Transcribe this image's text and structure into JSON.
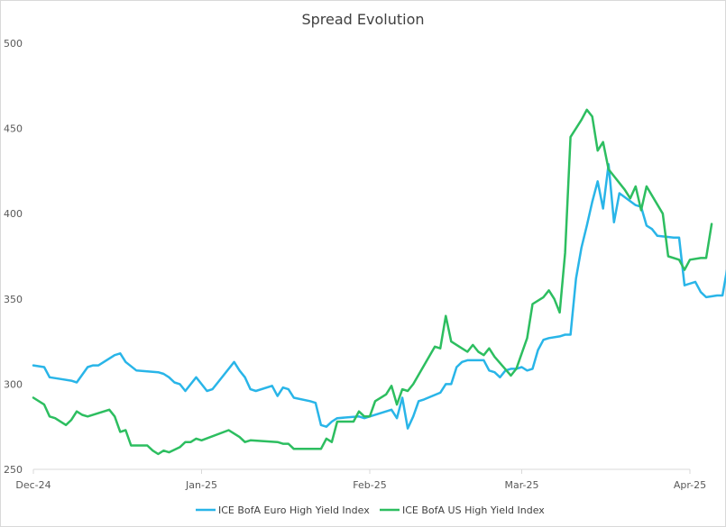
{
  "chart_data": {
    "type": "line",
    "title": "Spread Evolution",
    "xlabel": "",
    "ylabel": "",
    "ylim": [
      250,
      500
    ],
    "yticks": [
      250,
      300,
      350,
      400,
      450,
      500
    ],
    "xticks": [
      {
        "label": "Dec-24",
        "x": 0
      },
      {
        "label": "Jan-25",
        "x": 31
      },
      {
        "label": "Feb-25",
        "x": 62
      },
      {
        "label": "Mar-25",
        "x": 90
      },
      {
        "label": "Apr-25",
        "x": 121
      }
    ],
    "grid": false,
    "legend": "bottom",
    "series": [
      {
        "name": "ICE BofA Euro High Yield Index",
        "color": "#29b5e8",
        "points": [
          [
            0,
            311
          ],
          [
            2,
            310
          ],
          [
            3,
            304
          ],
          [
            5,
            303
          ],
          [
            7,
            302
          ],
          [
            8,
            301
          ],
          [
            10,
            310
          ],
          [
            11,
            311
          ],
          [
            12,
            311
          ],
          [
            15,
            317
          ],
          [
            16,
            318
          ],
          [
            17,
            313
          ],
          [
            19,
            308
          ],
          [
            23,
            307
          ],
          [
            24,
            306
          ],
          [
            25,
            304
          ],
          [
            26,
            301
          ],
          [
            27,
            300
          ],
          [
            28,
            296
          ],
          [
            29,
            300
          ],
          [
            30,
            304
          ],
          [
            31,
            300
          ],
          [
            32,
            296
          ],
          [
            33,
            297
          ],
          [
            34,
            301
          ],
          [
            37,
            313
          ],
          [
            38,
            308
          ],
          [
            39,
            304
          ],
          [
            40,
            297
          ],
          [
            41,
            296
          ],
          [
            44,
            299
          ],
          [
            45,
            293
          ],
          [
            46,
            298
          ],
          [
            47,
            297
          ],
          [
            48,
            292
          ],
          [
            51,
            290
          ],
          [
            52,
            289
          ],
          [
            53,
            276
          ],
          [
            54,
            275
          ],
          [
            55,
            278
          ],
          [
            56,
            280
          ],
          [
            60,
            281
          ],
          [
            61,
            280
          ],
          [
            62,
            281
          ],
          [
            66,
            285
          ],
          [
            67,
            280
          ],
          [
            68,
            292
          ],
          [
            69,
            274
          ],
          [
            70,
            281
          ],
          [
            71,
            290
          ],
          [
            72,
            291
          ],
          [
            75,
            295
          ],
          [
            76,
            300
          ],
          [
            77,
            300
          ],
          [
            78,
            310
          ],
          [
            79,
            313
          ],
          [
            80,
            314
          ],
          [
            82,
            314
          ],
          [
            83,
            314
          ],
          [
            84,
            308
          ],
          [
            85,
            307
          ],
          [
            86,
            304
          ],
          [
            87,
            308
          ],
          [
            88,
            309
          ],
          [
            89,
            309
          ],
          [
            90,
            310
          ],
          [
            91,
            308
          ],
          [
            92,
            309
          ],
          [
            93,
            320
          ],
          [
            94,
            326
          ],
          [
            95,
            327
          ],
          [
            97,
            328
          ],
          [
            98,
            329
          ],
          [
            99,
            329
          ],
          [
            100,
            362
          ],
          [
            101,
            380
          ],
          [
            102,
            393
          ],
          [
            103,
            407
          ],
          [
            104,
            419
          ],
          [
            105,
            403
          ],
          [
            106,
            429
          ],
          [
            107,
            395
          ],
          [
            108,
            412
          ],
          [
            111,
            405
          ],
          [
            112,
            404
          ],
          [
            113,
            393
          ],
          [
            114,
            391
          ],
          [
            115,
            387
          ],
          [
            118,
            386
          ],
          [
            119,
            386
          ],
          [
            120,
            358
          ],
          [
            122,
            360
          ],
          [
            123,
            354
          ],
          [
            124,
            351
          ],
          [
            126,
            352
          ],
          [
            127,
            352
          ],
          [
            128,
            370
          ]
        ]
      },
      {
        "name": "ICE BofA US High Yield Index",
        "color": "#2dbe60",
        "points": [
          [
            0,
            292
          ],
          [
            2,
            288
          ],
          [
            3,
            281
          ],
          [
            4,
            280
          ],
          [
            6,
            276
          ],
          [
            7,
            279
          ],
          [
            8,
            284
          ],
          [
            9,
            282
          ],
          [
            10,
            281
          ],
          [
            12,
            283
          ],
          [
            14,
            285
          ],
          [
            15,
            281
          ],
          [
            16,
            272
          ],
          [
            17,
            273
          ],
          [
            18,
            264
          ],
          [
            21,
            264
          ],
          [
            22,
            261
          ],
          [
            23,
            259
          ],
          [
            24,
            261
          ],
          [
            25,
            260
          ],
          [
            27,
            263
          ],
          [
            28,
            266
          ],
          [
            29,
            266
          ],
          [
            30,
            268
          ],
          [
            31,
            267
          ],
          [
            36,
            273
          ],
          [
            37,
            271
          ],
          [
            38,
            269
          ],
          [
            39,
            266
          ],
          [
            40,
            267
          ],
          [
            45,
            266
          ],
          [
            46,
            265
          ],
          [
            47,
            265
          ],
          [
            48,
            262
          ],
          [
            53,
            262
          ],
          [
            54,
            268
          ],
          [
            55,
            266
          ],
          [
            56,
            278
          ],
          [
            59,
            278
          ],
          [
            60,
            284
          ],
          [
            61,
            281
          ],
          [
            62,
            281
          ],
          [
            63,
            290
          ],
          [
            65,
            294
          ],
          [
            66,
            299
          ],
          [
            67,
            288
          ],
          [
            68,
            297
          ],
          [
            69,
            296
          ],
          [
            70,
            300
          ],
          [
            74,
            322
          ],
          [
            75,
            321
          ],
          [
            76,
            340
          ],
          [
            77,
            325
          ],
          [
            80,
            319
          ],
          [
            81,
            323
          ],
          [
            82,
            319
          ],
          [
            83,
            317
          ],
          [
            84,
            321
          ],
          [
            85,
            316
          ],
          [
            88,
            305
          ],
          [
            89,
            309
          ],
          [
            90,
            318
          ],
          [
            91,
            327
          ],
          [
            92,
            347
          ],
          [
            94,
            351
          ],
          [
            95,
            355
          ],
          [
            96,
            350
          ],
          [
            97,
            342
          ],
          [
            98,
            377
          ],
          [
            99,
            445
          ],
          [
            101,
            455
          ],
          [
            102,
            461
          ],
          [
            103,
            457
          ],
          [
            104,
            437
          ],
          [
            105,
            442
          ],
          [
            106,
            426
          ],
          [
            109,
            414
          ],
          [
            110,
            409
          ],
          [
            111,
            416
          ],
          [
            112,
            402
          ],
          [
            113,
            416
          ],
          [
            116,
            400
          ],
          [
            117,
            375
          ],
          [
            119,
            373
          ],
          [
            120,
            367
          ],
          [
            121,
            373
          ],
          [
            123,
            374
          ],
          [
            124,
            374
          ],
          [
            125,
            394
          ]
        ]
      }
    ]
  }
}
